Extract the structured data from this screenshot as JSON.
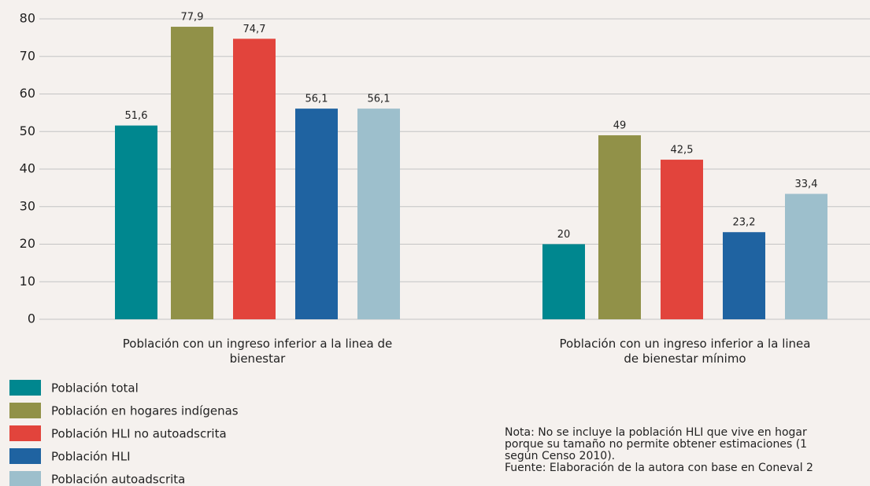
{
  "chart_data": {
    "type": "bar",
    "categories": [
      "Población con un ingreso inferior a la linea de bienestar",
      "Población con un ingreso inferior a la linea de bienestar mínimo"
    ],
    "series": [
      {
        "name": "Población total",
        "color": "#00878f",
        "values": [
          51.6,
          20
        ],
        "value_labels": [
          "51,6",
          "20"
        ]
      },
      {
        "name": "Población en hogares indígenas",
        "color": "#919148",
        "values": [
          77.9,
          49
        ],
        "value_labels": [
          "77,9",
          "49"
        ]
      },
      {
        "name": "Población HLI no autoadscrita",
        "color": "#e2443c",
        "values": [
          74.7,
          42.5
        ],
        "value_labels": [
          "74,7",
          "42,5"
        ]
      },
      {
        "name": "Población HLI",
        "color": "#1f63a1",
        "values": [
          56.1,
          23.2
        ],
        "value_labels": [
          "56,1",
          "23,2"
        ]
      },
      {
        "name": "Población autoadscrita",
        "color": "#9dbfcc",
        "values": [
          56.1,
          33.4
        ],
        "value_labels": [
          "56,1",
          "33,4"
        ]
      }
    ],
    "ylim": [
      0,
      80
    ],
    "yticks": [
      0,
      10,
      20,
      30,
      40,
      50,
      60,
      70,
      80
    ],
    "grid": true,
    "note": [
      "Nota: No se incluye la población HLI que vive en hogar",
      "porque su tamaño no permite obtener estimaciones (1",
      "según Censo 2010).",
      "Fuente: Elaboración de la autora con base en Coneval 2"
    ]
  }
}
